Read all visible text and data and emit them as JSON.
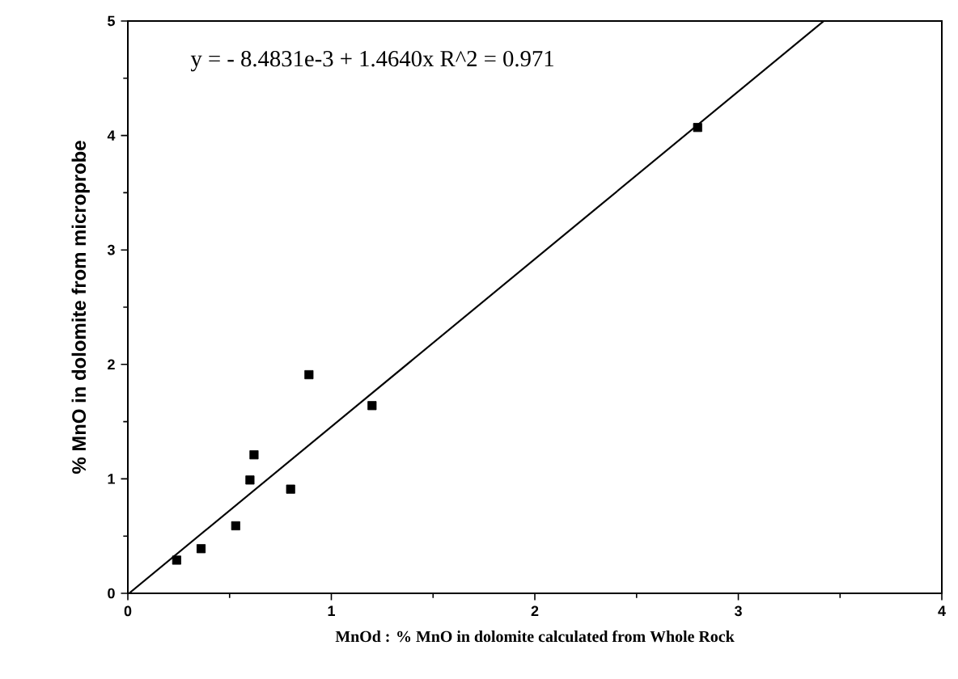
{
  "chart_data": {
    "type": "scatter",
    "xlabel": "MnOd : % MnO in dolomite calculated from Whole Rock",
    "ylabel": "% MnO in dolomite from microprobe",
    "annotations": [
      "y =  - 8.4831e-3 + 1.4640x   R^2 = 0.971"
    ],
    "xlim": [
      0,
      4
    ],
    "ylim": [
      0,
      5
    ],
    "xticks": [
      0,
      1,
      2,
      3,
      4
    ],
    "yticks": [
      0,
      1,
      2,
      3,
      4,
      5
    ],
    "marker": "square",
    "grid": false,
    "series": [
      {
        "color": "#000000",
        "x": [
          0.24,
          0.36,
          0.53,
          0.6,
          0.62,
          0.8,
          0.89,
          1.2,
          2.8
        ],
        "values": [
          0.29,
          0.39,
          0.59,
          0.99,
          1.21,
          0.91,
          1.91,
          1.64,
          4.07
        ]
      },
      {
        "type": "line",
        "color": "#000000",
        "line_style": "solid",
        "marker": "none",
        "x": [
          0.006,
          3.42
        ],
        "values": [
          0,
          5
        ]
      }
    ]
  }
}
